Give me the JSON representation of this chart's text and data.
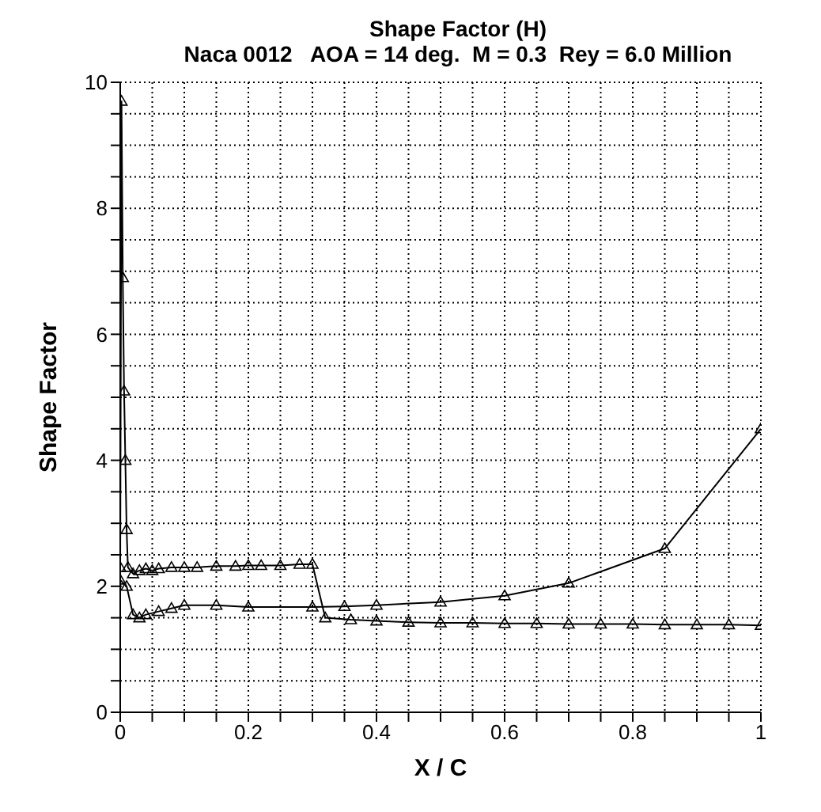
{
  "chart_data": {
    "type": "line",
    "title": "Shape Factor (H)",
    "subtitle": "Naca 0012   AOA = 14 deg.  M = 0.3  Rey = 6.0 Million",
    "xlabel": "X / C",
    "ylabel": "Shape Factor",
    "xlim": [
      0,
      1
    ],
    "ylim": [
      0,
      10
    ],
    "xticks": [
      0,
      {
        "value": 0.05,
        "label": null
      },
      {
        "value": 0.1,
        "label": null
      },
      {
        "value": 0.15,
        "label": null
      },
      0.2,
      {
        "value": 0.25,
        "label": null
      },
      {
        "value": 0.3,
        "label": null
      },
      {
        "value": 0.35,
        "label": null
      },
      0.4,
      {
        "value": 0.45,
        "label": null
      },
      {
        "value": 0.5,
        "label": null
      },
      {
        "value": 0.55,
        "label": null
      },
      0.6,
      {
        "value": 0.65,
        "label": null
      },
      {
        "value": 0.7,
        "label": null
      },
      {
        "value": 0.75,
        "label": null
      },
      0.8,
      {
        "value": 0.85,
        "label": null
      },
      {
        "value": 0.9,
        "label": null
      },
      {
        "value": 0.95,
        "label": null
      },
      1
    ],
    "yticks": [
      0,
      {
        "value": 0.5,
        "label": null
      },
      {
        "value": 1,
        "label": null
      },
      {
        "value": 1.5,
        "label": null
      },
      2,
      {
        "value": 2.5,
        "label": null
      },
      {
        "value": 3,
        "label": null
      },
      {
        "value": 3.5,
        "label": null
      },
      4,
      {
        "value": 4.5,
        "label": null
      },
      {
        "value": 5,
        "label": null
      },
      {
        "value": 5.5,
        "label": null
      },
      6,
      {
        "value": 6.5,
        "label": null
      },
      {
        "value": 7,
        "label": null
      },
      {
        "value": 7.5,
        "label": null
      },
      8,
      {
        "value": 8.5,
        "label": null
      },
      {
        "value": 9,
        "label": null
      },
      {
        "value": 9.5,
        "label": null
      },
      10
    ],
    "grid": true,
    "legend": false,
    "marker": "triangle",
    "line_style": "solid",
    "series": [
      {
        "color": "#000000",
        "x": [
          0,
          0.002,
          0.004,
          0.006,
          0.008,
          0.01,
          0.012,
          0.02,
          0.03,
          0.04,
          0.05,
          0.06,
          0.08,
          0.1,
          0.12,
          0.15,
          0.18,
          0.2,
          0.22,
          0.25,
          0.28,
          0.3,
          0.32,
          0.36,
          0.4,
          0.45,
          0.5,
          0.55,
          0.6,
          0.65,
          0.7,
          0.75,
          0.8,
          0.85,
          0.9,
          0.95,
          1
        ],
        "values": [
          2.3,
          9.7,
          6.9,
          5.1,
          4.0,
          2.9,
          2.3,
          2.2,
          2.25,
          2.28,
          2.25,
          2.28,
          2.3,
          2.3,
          2.3,
          2.32,
          2.32,
          2.33,
          2.33,
          2.33,
          2.35,
          2.35,
          1.5,
          1.47,
          1.45,
          1.43,
          1.42,
          1.42,
          1.41,
          1.41,
          1.4,
          1.4,
          1.4,
          1.39,
          1.39,
          1.39,
          1.38
        ]
      },
      {
        "color": "#000000",
        "x": [
          0,
          0.01,
          0.02,
          0.03,
          0.04,
          0.06,
          0.08,
          0.1,
          0.15,
          0.2,
          0.3,
          0.35,
          0.4,
          0.5,
          0.6,
          0.7,
          0.85,
          1
        ],
        "values": [
          2.1,
          2.0,
          1.55,
          1.5,
          1.55,
          1.6,
          1.65,
          1.7,
          1.7,
          1.67,
          1.67,
          1.68,
          1.7,
          1.75,
          1.85,
          2.05,
          2.6,
          4.5
        ]
      }
    ]
  }
}
